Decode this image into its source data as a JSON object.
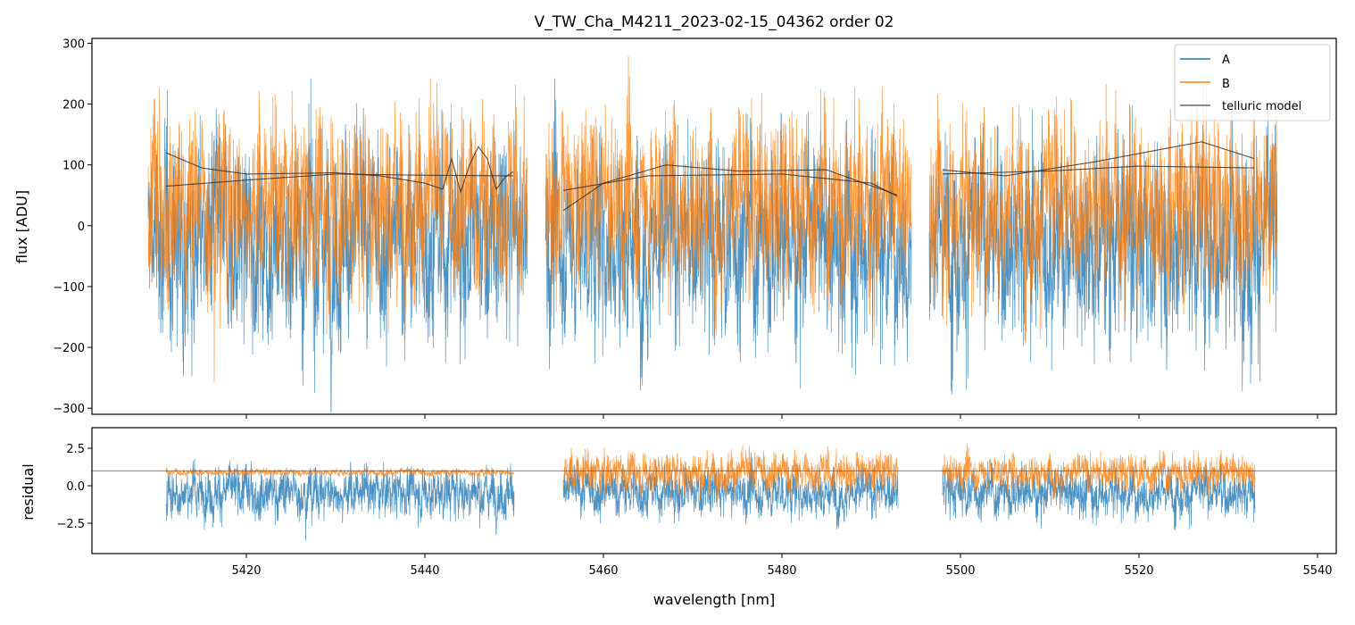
{
  "chart_data": {
    "type": "line",
    "title": "V_TW_Cha_M4211_2023-02-15_04362  order 02",
    "xlabel": "wavelength [nm]",
    "xlim": [
      5402.7,
      5542.1
    ],
    "xticks": [
      5420,
      5440,
      5460,
      5480,
      5500,
      5520,
      5540
    ],
    "legend": {
      "placement": "top-right",
      "entries": [
        "A",
        "B",
        "telluric model"
      ]
    },
    "colors": {
      "A": "#1f77b4",
      "B": "#ff7f0e",
      "model": "#333333"
    },
    "panels": [
      {
        "name": "flux",
        "ylabel": "flux [ADU]",
        "ylim": [
          -310,
          308
        ],
        "yticks": [
          -300,
          -200,
          -100,
          0,
          100,
          200,
          300
        ],
        "data_segments_nm": [
          [
            5409,
            5451.5
          ],
          [
            5453.5,
            5494.5
          ],
          [
            5496.5,
            5535.5
          ]
        ],
        "series": [
          {
            "name": "A",
            "approx_mean": -20,
            "approx_noise_std": 110
          },
          {
            "name": "B",
            "approx_mean": 40,
            "approx_noise_std": 100
          }
        ],
        "telluric_model": [
          {
            "x": [
              5411,
              5420,
              5430,
              5440,
              5450
            ],
            "y": [
              65,
              75,
              85,
              83,
              82
            ]
          },
          {
            "x": [
              5411,
              5415,
              5420,
              5430,
              5435,
              5440,
              5442,
              5443,
              5444,
              5445,
              5446,
              5447,
              5448,
              5449,
              5450
            ],
            "y": [
              120,
              95,
              85,
              87,
              82,
              70,
              60,
              110,
              55,
              100,
              130,
              110,
              60,
              80,
              90
            ]
          },
          {
            "x": [
              5455.5,
              5460,
              5467,
              5475,
              5485,
              5493
            ],
            "y": [
              25,
              70,
              100,
              90,
              92,
              50
            ]
          },
          {
            "x": [
              5455.5,
              5465,
              5480,
              5490,
              5493
            ],
            "y": [
              58,
              82,
              85,
              70,
              48
            ]
          },
          {
            "x": [
              5498,
              5510,
              5520,
              5533
            ],
            "y": [
              85,
              90,
              98,
              95
            ]
          },
          {
            "x": [
              5498,
              5505,
              5515,
              5527,
              5533
            ],
            "y": [
              92,
              82,
              105,
              138,
              110
            ]
          }
        ]
      },
      {
        "name": "residual",
        "ylabel": "residual",
        "ylim": [
          -4.52,
          3.87
        ],
        "yticks": [
          -2.5,
          0.0,
          2.5
        ],
        "ytick_labels": [
          "−2.5",
          "0.0",
          "2.5"
        ],
        "reference_line": 1.0,
        "data_segments_nm": [
          [
            5411,
            5450
          ],
          [
            5455.5,
            5493
          ],
          [
            5498,
            5533
          ]
        ],
        "series": [
          {
            "name": "A",
            "approx_mean": -0.4,
            "approx_noise_std": 1.1
          },
          {
            "name": "B",
            "approx_mean": 0.9,
            "approx_noise_std": [
              0.15,
              0.9,
              0.8
            ]
          }
        ]
      }
    ],
    "flux_ytick_labels": [
      "−300",
      "−200",
      "−100",
      "0",
      "100",
      "200",
      "300"
    ]
  }
}
